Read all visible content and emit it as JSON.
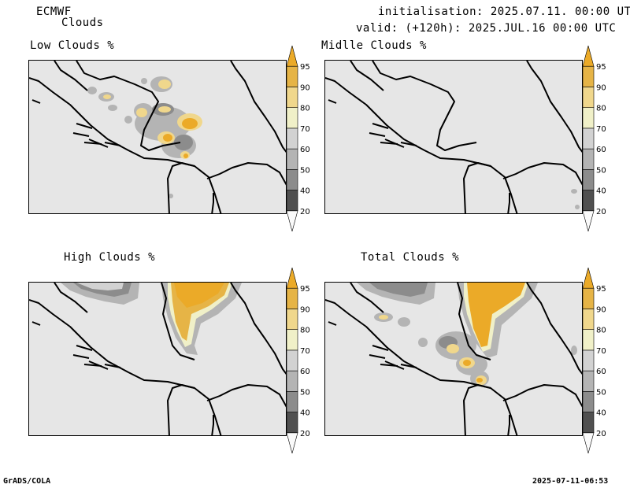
{
  "header": {
    "model": "ECMWF",
    "product": "Clouds",
    "initialisation": "initialisation: 2025.07.11. 00:00 UTC",
    "valid": "valid: (+120h): 2025.JUL.16 00:00 UTC"
  },
  "panels": {
    "low": {
      "title": "Low Clouds %"
    },
    "middle": {
      "title": "Midlle Clouds %"
    },
    "high": {
      "title": "High Clouds %"
    },
    "total": {
      "title": "Total Clouds %"
    }
  },
  "legend": {
    "levels": [
      "20",
      "40",
      "50",
      "60",
      "70",
      "80",
      "90",
      "95"
    ],
    "colors": [
      "#fafafa",
      "#505050",
      "#8c8c8c",
      "#b4b4b4",
      "#d2d2d2",
      "#f0f0c8",
      "#f0d78c",
      "#e6b446",
      "#ebaa28"
    ]
  },
  "footer": {
    "left": "GrADS/COLA",
    "right": "2025-07-11-06:53"
  }
}
